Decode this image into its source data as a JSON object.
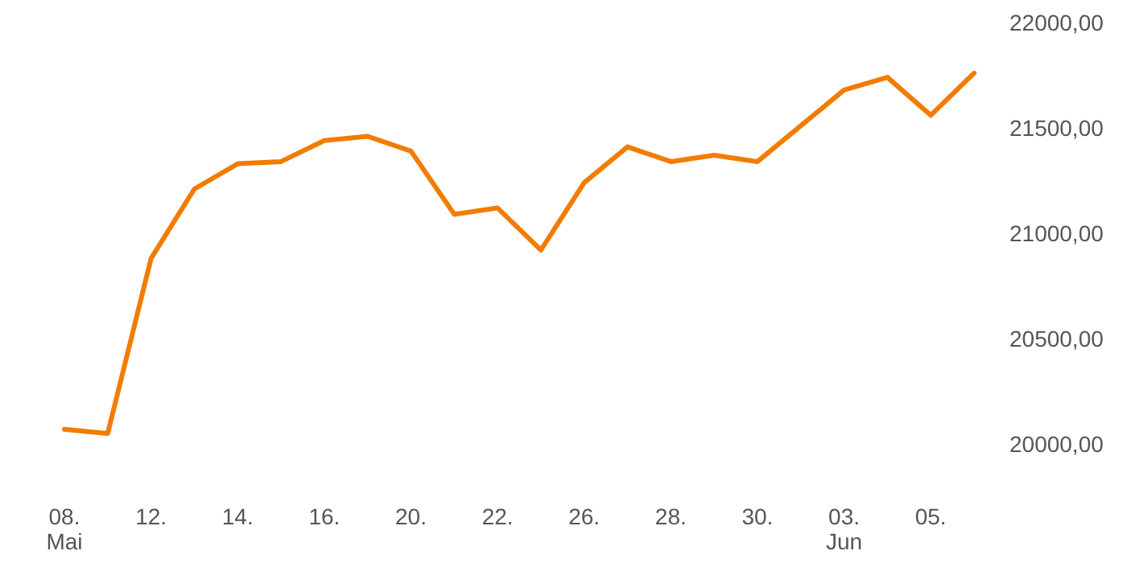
{
  "chart_data": {
    "type": "line",
    "categories": [
      "08.\nMai",
      null,
      "12.",
      null,
      "14.",
      null,
      "16.",
      null,
      "20.",
      null,
      "22.",
      null,
      "26.",
      null,
      "28.",
      null,
      "30.",
      null,
      "03.\nJun",
      null,
      "05.",
      null
    ],
    "series": [
      {
        "color": "#f27c00",
        "values": [
          20070,
          20050,
          20880,
          21210,
          21330,
          21340,
          21440,
          21460,
          21390,
          21090,
          21120,
          20920,
          21240,
          21410,
          21340,
          21370,
          21340,
          21510,
          21680,
          21740,
          21560,
          21760
        ]
      }
    ],
    "ylim": [
      20000,
      22000
    ],
    "yticks": [
      {
        "value": 20000,
        "label": "20000,00"
      },
      {
        "value": 20500,
        "label": "20500,00"
      },
      {
        "value": 21000,
        "label": "21000,00"
      },
      {
        "value": 21500,
        "label": "21500,00"
      },
      {
        "value": 22000,
        "label": "22000,00"
      }
    ],
    "grid": false,
    "marker": "none",
    "line_style": "solid"
  }
}
